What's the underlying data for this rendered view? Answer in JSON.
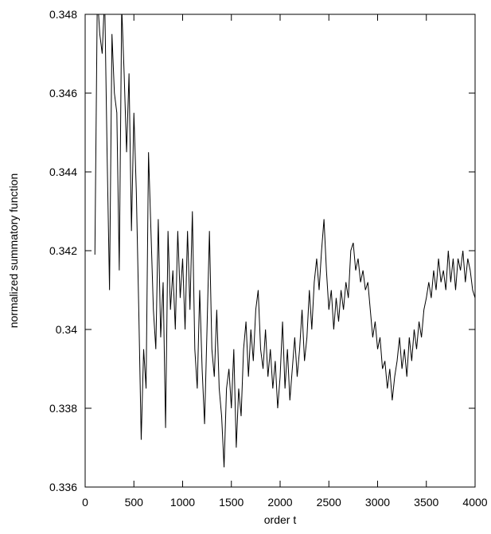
{
  "chart_data": {
    "type": "line",
    "x_label": "order t",
    "y_label": "normalized summatory function",
    "xlim": [
      0,
      4000
    ],
    "xticks": [
      0,
      500,
      1000,
      1500,
      2000,
      2500,
      3000,
      3500,
      4000
    ],
    "ylim": [
      0.336,
      0.348
    ],
    "yticks": [
      0.336,
      0.338,
      0.34,
      0.342,
      0.344,
      0.346,
      0.348
    ],
    "grid": false,
    "x": [
      100,
      125,
      150,
      175,
      200,
      225,
      250,
      275,
      300,
      325,
      350,
      375,
      400,
      425,
      450,
      475,
      500,
      525,
      550,
      575,
      600,
      625,
      650,
      675,
      700,
      725,
      750,
      775,
      800,
      825,
      850,
      875,
      900,
      925,
      950,
      975,
      1000,
      1025,
      1050,
      1075,
      1100,
      1125,
      1150,
      1175,
      1200,
      1225,
      1250,
      1275,
      1300,
      1325,
      1350,
      1375,
      1400,
      1425,
      1450,
      1475,
      1500,
      1525,
      1550,
      1575,
      1600,
      1625,
      1650,
      1675,
      1700,
      1725,
      1750,
      1775,
      1800,
      1825,
      1850,
      1875,
      1900,
      1925,
      1950,
      1975,
      2000,
      2025,
      2050,
      2075,
      2100,
      2125,
      2150,
      2175,
      2200,
      2225,
      2250,
      2275,
      2300,
      2325,
      2350,
      2375,
      2400,
      2425,
      2450,
      2475,
      2500,
      2525,
      2550,
      2575,
      2600,
      2625,
      2650,
      2675,
      2700,
      2725,
      2750,
      2775,
      2800,
      2825,
      2850,
      2875,
      2900,
      2925,
      2950,
      2975,
      3000,
      3025,
      3050,
      3075,
      3100,
      3125,
      3150,
      3175,
      3200,
      3225,
      3250,
      3275,
      3300,
      3325,
      3350,
      3375,
      3400,
      3425,
      3450,
      3475,
      3500,
      3525,
      3550,
      3575,
      3600,
      3625,
      3650,
      3675,
      3700,
      3725,
      3750,
      3775,
      3800,
      3825,
      3850,
      3875,
      3900,
      3925,
      3950,
      3975,
      4000
    ],
    "series": [
      {
        "color": "#000000",
        "values": [
          0.3419,
          0.3485,
          0.3475,
          0.347,
          0.3485,
          0.3445,
          0.341,
          0.3475,
          0.346,
          0.3455,
          0.3415,
          0.3482,
          0.3465,
          0.3445,
          0.3465,
          0.3425,
          0.3455,
          0.3435,
          0.3405,
          0.3372,
          0.3395,
          0.3385,
          0.3445,
          0.3425,
          0.3405,
          0.3395,
          0.3428,
          0.3398,
          0.3412,
          0.3375,
          0.3425,
          0.3405,
          0.3415,
          0.34,
          0.3425,
          0.3408,
          0.3418,
          0.34,
          0.3425,
          0.3405,
          0.343,
          0.3395,
          0.3385,
          0.341,
          0.339,
          0.3376,
          0.34,
          0.3425,
          0.3395,
          0.3388,
          0.3405,
          0.3385,
          0.3378,
          0.3365,
          0.3385,
          0.339,
          0.338,
          0.3395,
          0.337,
          0.3385,
          0.3378,
          0.3395,
          0.3402,
          0.3388,
          0.34,
          0.3392,
          0.3405,
          0.341,
          0.3395,
          0.339,
          0.34,
          0.3388,
          0.3395,
          0.3385,
          0.3392,
          0.338,
          0.3388,
          0.3402,
          0.3385,
          0.3395,
          0.3382,
          0.339,
          0.3398,
          0.3388,
          0.3395,
          0.3405,
          0.3392,
          0.3398,
          0.341,
          0.34,
          0.3412,
          0.3418,
          0.341,
          0.342,
          0.3428,
          0.3415,
          0.3405,
          0.341,
          0.34,
          0.3408,
          0.3402,
          0.341,
          0.3405,
          0.3412,
          0.3408,
          0.342,
          0.3422,
          0.3415,
          0.3418,
          0.3412,
          0.3415,
          0.341,
          0.3412,
          0.3405,
          0.3398,
          0.3402,
          0.3395,
          0.3398,
          0.339,
          0.3392,
          0.3385,
          0.339,
          0.3382,
          0.3388,
          0.3392,
          0.3398,
          0.339,
          0.3395,
          0.3388,
          0.3398,
          0.3392,
          0.34,
          0.3395,
          0.3402,
          0.3398,
          0.3405,
          0.3408,
          0.3412,
          0.3408,
          0.3415,
          0.341,
          0.3418,
          0.3412,
          0.3415,
          0.341,
          0.342,
          0.3412,
          0.3418,
          0.341,
          0.3418,
          0.3415,
          0.342,
          0.3412,
          0.3418,
          0.3415,
          0.341,
          0.3408
        ]
      }
    ]
  }
}
